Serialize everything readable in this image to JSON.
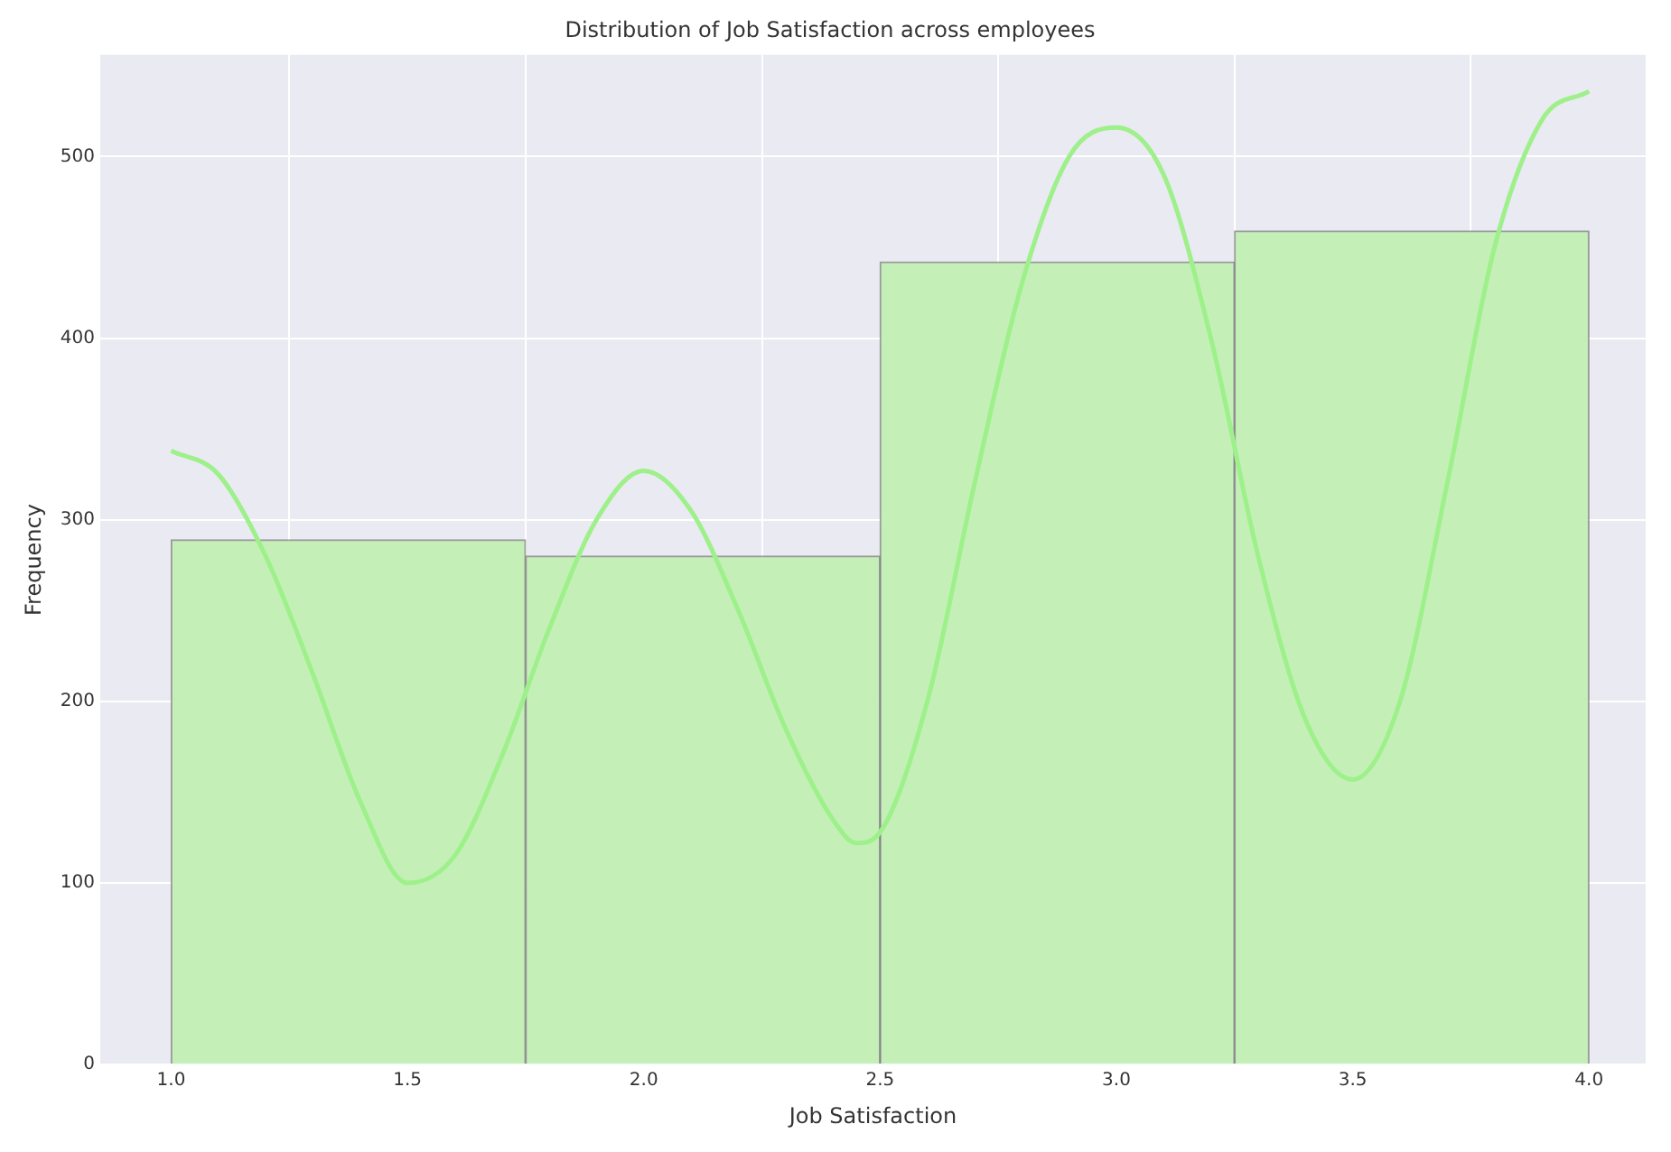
{
  "chart_data": {
    "type": "histogram",
    "title": "Distribution of Job Satisfaction across employees",
    "xlabel": "Job Satisfaction",
    "ylabel": "Frequency",
    "bins": [
      1.0,
      1.75,
      2.5,
      3.25,
      4.0
    ],
    "values": [
      289,
      280,
      442,
      459
    ],
    "color": "#c4f0b8",
    "series": [
      {
        "type": "line",
        "color": "#9ef08a",
        "x": [
          1.0,
          1.1,
          1.2,
          1.3,
          1.4,
          1.5,
          1.6,
          1.7,
          1.8,
          1.9,
          2.0,
          2.1,
          2.2,
          2.3,
          2.4,
          2.45,
          2.5,
          2.6,
          2.7,
          2.8,
          2.9,
          3.0,
          3.1,
          3.2,
          3.3,
          3.4,
          3.5,
          3.6,
          3.7,
          3.8,
          3.9,
          4.0
        ],
        "values": [
          338,
          325,
          280,
          215,
          145,
          100,
          115,
          170,
          240,
          300,
          327,
          305,
          250,
          185,
          135,
          122,
          128,
          200,
          320,
          430,
          500,
          516,
          490,
          400,
          280,
          190,
          157,
          200,
          320,
          450,
          520,
          536
        ]
      }
    ],
    "xlim": [
      0.85,
      4.12
    ],
    "xticks": [
      {
        "value": 1.0,
        "label": "1.0"
      },
      {
        "value": 1.5,
        "label": "1.5"
      },
      {
        "value": 2.0,
        "label": "2.0"
      },
      {
        "value": 2.5,
        "label": "2.5"
      },
      {
        "value": 3.0,
        "label": "3.0"
      },
      {
        "value": 3.5,
        "label": "3.5"
      },
      {
        "value": 4.0,
        "label": "4.0"
      }
    ],
    "ylim": [
      0,
      556
    ],
    "yticks": [
      0,
      100,
      200,
      300,
      400,
      500
    ],
    "grid": true,
    "marker": "none"
  }
}
